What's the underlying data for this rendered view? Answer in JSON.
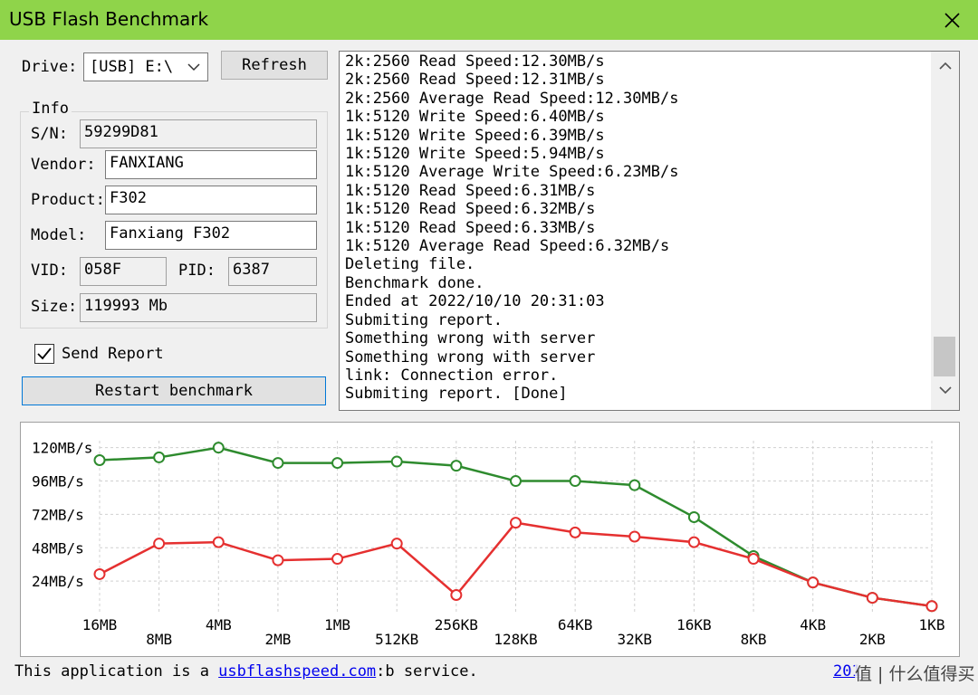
{
  "window": {
    "title": "USB Flash Benchmark"
  },
  "drive": {
    "label": "Drive:",
    "value": "[USB] E:\\",
    "refresh_label": "Refresh"
  },
  "info": {
    "group_label": "Info",
    "sn_label": "S/N:",
    "sn": "59299D81",
    "vendor_label": "Vendor:",
    "vendor": "FANXIANG",
    "product_label": "Product:",
    "product": "F302",
    "model_label": "Model:",
    "model": "Fanxiang F302",
    "vid_label": "VID:",
    "vid": "058F",
    "pid_label": "PID:",
    "pid": "6387",
    "size_label": "Size:",
    "size": "119993 Mb"
  },
  "send_report": {
    "label": "Send Report",
    "checked": true
  },
  "restart_label": "Restart benchmark",
  "log": [
    "2k:2560 Read Speed:12.30MB/s",
    "2k:2560 Read Speed:12.31MB/s",
    "2k:2560 Average Read Speed:12.30MB/s",
    "1k:5120 Write Speed:6.40MB/s",
    "1k:5120 Write Speed:6.39MB/s",
    "1k:5120 Write Speed:5.94MB/s",
    "1k:5120 Average Write Speed:6.23MB/s",
    "1k:5120 Read Speed:6.31MB/s",
    "1k:5120 Read Speed:6.32MB/s",
    "1k:5120 Read Speed:6.33MB/s",
    "1k:5120 Average Read Speed:6.32MB/s",
    "Deleting file.",
    "Benchmark done.",
    "Ended at 2022/10/10 20:31:03",
    "Submiting report.",
    "Something wrong with server",
    "Something wrong with server",
    "link: Connection error.",
    "Submiting report. [Done]"
  ],
  "footer": {
    "text_before": "This application is a ",
    "link": "usbflashspeed.com",
    "text_after": ":b service.",
    "right_link": "201",
    "watermark": "值 | 什么值得买"
  },
  "chart_data": {
    "type": "line",
    "categories": [
      "16MB",
      "8MB",
      "4MB",
      "2MB",
      "1MB",
      "512KB",
      "256KB",
      "128KB",
      "64KB",
      "32KB",
      "16KB",
      "8KB",
      "4KB",
      "2KB",
      "1KB"
    ],
    "y_tick_labels": [
      "120MB/s",
      "96MB/s",
      "72MB/s",
      "48MB/s",
      "24MB/s"
    ],
    "y_ticks": [
      120,
      96,
      72,
      48,
      24
    ],
    "ylim": [
      0,
      125
    ],
    "grid": true,
    "series": [
      {
        "color": "#2e8b2e",
        "values": [
          111,
          113,
          120,
          109,
          109,
          110,
          107,
          96,
          96,
          93,
          70,
          42,
          23,
          12,
          6
        ]
      },
      {
        "color": "#e53030",
        "values": [
          29,
          51,
          52,
          39,
          40,
          51,
          14,
          66,
          59,
          56,
          52,
          40,
          23,
          12,
          6
        ]
      }
    ]
  }
}
